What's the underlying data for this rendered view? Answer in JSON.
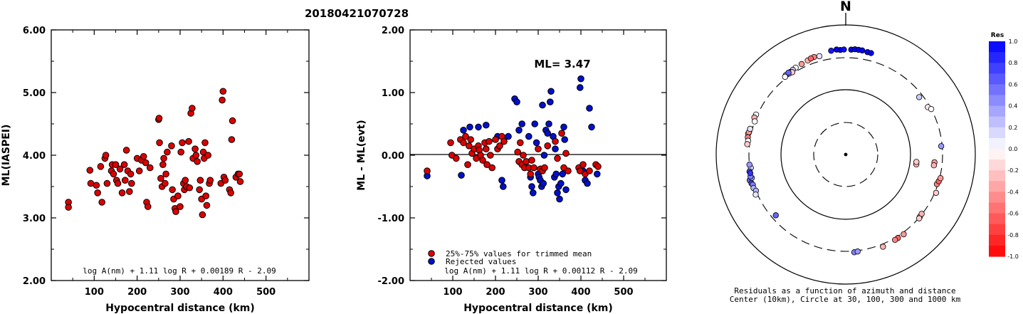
{
  "title": "20180421070728",
  "colors": {
    "point_kept": "#dd0000",
    "point_rejected": "#0010cc",
    "axis": "#000000"
  },
  "chart_data": [
    {
      "type": "scatter",
      "ylabel": "ML(IASPEI)",
      "xlabel": "Hypocentral distance (km)",
      "xlim": [
        0,
        600
      ],
      "ylim": [
        2.0,
        6.0
      ],
      "xticks": [
        "100",
        "200",
        "300",
        "400",
        "500"
      ],
      "yticks": [
        "2.00",
        "3.00",
        "4.00",
        "5.00",
        "6.00"
      ],
      "formula": "log A(nm) + 1.11 log R + 0.00189 R - 2.09",
      "points": [
        [
          40,
          3.25
        ],
        [
          40,
          3.17
        ],
        [
          90,
          3.76
        ],
        [
          92,
          3.55
        ],
        [
          105,
          3.52
        ],
        [
          108,
          3.4
        ],
        [
          115,
          3.82
        ],
        [
          118,
          3.25
        ],
        [
          125,
          3.95
        ],
        [
          127,
          4.0
        ],
        [
          130,
          3.55
        ],
        [
          140,
          3.75
        ],
        [
          142,
          3.85
        ],
        [
          145,
          3.7
        ],
        [
          150,
          3.85
        ],
        [
          152,
          3.6
        ],
        [
          155,
          3.55
        ],
        [
          160,
          3.78
        ],
        [
          165,
          3.4
        ],
        [
          170,
          3.85
        ],
        [
          172,
          3.6
        ],
        [
          175,
          4.08
        ],
        [
          178,
          3.75
        ],
        [
          182,
          3.42
        ],
        [
          185,
          3.7
        ],
        [
          187,
          3.55
        ],
        [
          200,
          3.95
        ],
        [
          205,
          3.75
        ],
        [
          210,
          3.92
        ],
        [
          215,
          3.98
        ],
        [
          220,
          3.88
        ],
        [
          222,
          3.25
        ],
        [
          225,
          3.18
        ],
        [
          230,
          3.8
        ],
        [
          250,
          4.57
        ],
        [
          251,
          4.59
        ],
        [
          252,
          4.2
        ],
        [
          255,
          3.63
        ],
        [
          258,
          3.5
        ],
        [
          260,
          3.85
        ],
        [
          262,
          3.95
        ],
        [
          265,
          3.55
        ],
        [
          267,
          3.7
        ],
        [
          270,
          4.05
        ],
        [
          280,
          4.15
        ],
        [
          282,
          3.45
        ],
        [
          285,
          3.3
        ],
        [
          288,
          3.15
        ],
        [
          290,
          3.1
        ],
        [
          295,
          3.35
        ],
        [
          300,
          3.18
        ],
        [
          302,
          4.05
        ],
        [
          305,
          4.2
        ],
        [
          308,
          3.55
        ],
        [
          310,
          3.45
        ],
        [
          312,
          3.6
        ],
        [
          315,
          3.5
        ],
        [
          320,
          4.22
        ],
        [
          322,
          3.48
        ],
        [
          325,
          4.67
        ],
        [
          328,
          4.75
        ],
        [
          330,
          3.95
        ],
        [
          335,
          4.1
        ],
        [
          337,
          4.0
        ],
        [
          340,
          3.9
        ],
        [
          345,
          3.45
        ],
        [
          347,
          3.6
        ],
        [
          350,
          3.3
        ],
        [
          352,
          3.05
        ],
        [
          354,
          4.05
        ],
        [
          356,
          3.95
        ],
        [
          358,
          4.2
        ],
        [
          360,
          3.35
        ],
        [
          362,
          3.2
        ],
        [
          365,
          4.0
        ],
        [
          368,
          3.55
        ],
        [
          370,
          3.6
        ],
        [
          395,
          3.55
        ],
        [
          398,
          4.88
        ],
        [
          400,
          5.02
        ],
        [
          402,
          3.65
        ],
        [
          405,
          3.6
        ],
        [
          415,
          3.45
        ],
        [
          418,
          3.4
        ],
        [
          420,
          4.25
        ],
        [
          422,
          4.55
        ],
        [
          430,
          3.65
        ],
        [
          435,
          3.7
        ],
        [
          438,
          3.7
        ],
        [
          440,
          3.58
        ]
      ]
    },
    {
      "type": "scatter",
      "ylabel": "ML - ML(evt)",
      "xlabel": "Hypocentral distance (km)",
      "xlim": [
        0,
        600
      ],
      "ylim": [
        -2.0,
        2.0
      ],
      "xticks": [
        "100",
        "200",
        "300",
        "400",
        "500"
      ],
      "yticks": [
        "-2.00",
        "-1.00",
        "0.00",
        "1.00",
        "2.00"
      ],
      "annotation": "ML= 3.47",
      "formula": "log A(nm) + 1.11 log R + 0.00112 R - 2.09",
      "legend": [
        {
          "label": "25%-75% values for trimmed mean",
          "color": "#dd0000"
        },
        {
          "label": "Rejected values",
          "color": "#0010cc"
        }
      ],
      "kept_points": [
        [
          40,
          -0.25
        ],
        [
          95,
          0.2
        ],
        [
          98,
          0.0
        ],
        [
          108,
          -0.05
        ],
        [
          118,
          0.25
        ],
        [
          125,
          0.2
        ],
        [
          130,
          0.3
        ],
        [
          135,
          -0.15
        ],
        [
          138,
          0.15
        ],
        [
          142,
          0.25
        ],
        [
          145,
          0.03
        ],
        [
          150,
          0.1
        ],
        [
          155,
          -0.05
        ],
        [
          160,
          0.15
        ],
        [
          162,
          0.08
        ],
        [
          165,
          0.0
        ],
        [
          170,
          -0.08
        ],
        [
          175,
          0.2
        ],
        [
          178,
          0.1
        ],
        [
          180,
          -0.15
        ],
        [
          185,
          0.22
        ],
        [
          188,
          0.0
        ],
        [
          192,
          -0.2
        ],
        [
          200,
          0.25
        ],
        [
          205,
          0.1
        ],
        [
          210,
          0.15
        ],
        [
          215,
          0.3
        ],
        [
          220,
          0.22
        ],
        [
          252,
          0.05
        ],
        [
          255,
          -0.1
        ],
        [
          258,
          0.2
        ],
        [
          262,
          -0.15
        ],
        [
          265,
          0.0
        ],
        [
          268,
          -0.2
        ],
        [
          272,
          -0.1
        ],
        [
          278,
          -0.2
        ],
        [
          282,
          -0.3
        ],
        [
          285,
          -0.08
        ],
        [
          290,
          -0.2
        ],
        [
          300,
          0.1
        ],
        [
          305,
          -0.22
        ],
        [
          310,
          -0.25
        ],
        [
          315,
          -0.2
        ],
        [
          322,
          0.15
        ],
        [
          340,
          0.22
        ],
        [
          345,
          -0.05
        ],
        [
          355,
          0.35
        ],
        [
          360,
          -0.2
        ],
        [
          365,
          0.03
        ],
        [
          370,
          -0.25
        ],
        [
          395,
          -0.2
        ],
        [
          398,
          -0.25
        ],
        [
          405,
          -0.15
        ],
        [
          410,
          -0.3
        ],
        [
          420,
          -0.25
        ],
        [
          435,
          -0.15
        ],
        [
          440,
          -0.18
        ]
      ],
      "rejected_points": [
        [
          40,
          -0.33
        ],
        [
          120,
          -0.32
        ],
        [
          125,
          0.4
        ],
        [
          140,
          0.45
        ],
        [
          160,
          0.45
        ],
        [
          178,
          0.48
        ],
        [
          205,
          0.3
        ],
        [
          215,
          -0.4
        ],
        [
          218,
          -0.5
        ],
        [
          230,
          0.3
        ],
        [
          245,
          0.9
        ],
        [
          250,
          0.85
        ],
        [
          255,
          0.4
        ],
        [
          262,
          0.5
        ],
        [
          278,
          0.3
        ],
        [
          282,
          -0.35
        ],
        [
          285,
          -0.5
        ],
        [
          288,
          -0.6
        ],
        [
          292,
          0.5
        ],
        [
          296,
          0.2
        ],
        [
          300,
          -0.3
        ],
        [
          302,
          -0.35
        ],
        [
          305,
          -0.4
        ],
        [
          308,
          -0.5
        ],
        [
          310,
          0.8
        ],
        [
          312,
          -0.45
        ],
        [
          314,
          0.0
        ],
        [
          318,
          0.4
        ],
        [
          322,
          0.35
        ],
        [
          325,
          0.5
        ],
        [
          328,
          0.85
        ],
        [
          330,
          1.02
        ],
        [
          335,
          0.3
        ],
        [
          338,
          -0.35
        ],
        [
          340,
          0.1
        ],
        [
          342,
          -0.3
        ],
        [
          345,
          -0.6
        ],
        [
          348,
          -0.5
        ],
        [
          350,
          -0.7
        ],
        [
          353,
          -0.45
        ],
        [
          357,
          -0.3
        ],
        [
          360,
          0.45
        ],
        [
          362,
          0.25
        ],
        [
          365,
          -0.55
        ],
        [
          398,
          1.08
        ],
        [
          400,
          1.22
        ],
        [
          405,
          -0.25
        ],
        [
          410,
          -0.4
        ],
        [
          415,
          -0.45
        ],
        [
          420,
          0.75
        ],
        [
          425,
          0.45
        ],
        [
          438,
          -0.3
        ]
      ]
    },
    {
      "type": "scatter",
      "subtype": "polar",
      "north_label": "N",
      "caption": [
        "Residuals as a function of azimuth and distance",
        "Center (10km), Circle at 30, 100, 300 and 1000 km"
      ],
      "colorbar_title": "Res",
      "colorbar_ticks": [
        "1.0",
        "0.8",
        "0.6",
        "0.4",
        "0.2",
        "0.0",
        "-0.2",
        "-0.4",
        "-0.6",
        "-0.8",
        "-1.0"
      ],
      "points_az_dist_res": [
        [
          -3,
          400,
          1.2
        ],
        [
          -5,
          410,
          1.0
        ],
        [
          3,
          405,
          1.1
        ],
        [
          5,
          415,
          1.2
        ],
        [
          7,
          412,
          1.0
        ],
        [
          9,
          410,
          1.1
        ],
        [
          12,
          400,
          1.05
        ],
        [
          14,
          398,
          1.0
        ],
        [
          -8,
          402,
          0.9
        ],
        [
          -1,
          405,
          0.95
        ],
        [
          -15,
          360,
          0.1
        ],
        [
          -22,
          355,
          -0.3
        ],
        [
          -26,
          345,
          -0.4
        ],
        [
          -30,
          340,
          0.0
        ],
        [
          -32,
          335,
          0.2
        ],
        [
          -34,
          330,
          0.5
        ],
        [
          -37,
          330,
          0.3
        ],
        [
          -35,
          322,
          0.1
        ],
        [
          -33,
          315,
          -0.2
        ],
        [
          -38,
          320,
          0.0
        ],
        [
          -18,
          370,
          -0.5
        ],
        [
          -20,
          365,
          -0.6
        ],
        [
          -35,
          335,
          0.6
        ],
        [
          -78,
          335,
          -0.3
        ],
        [
          -77,
          330,
          -0.4
        ],
        [
          -75,
          325,
          0.1
        ],
        [
          -80,
          330,
          -0.5
        ],
        [
          -82,
          320,
          0.0
        ],
        [
          -84,
          325,
          -0.2
        ],
        [
          -66,
          315,
          0.0
        ],
        [
          -68,
          320,
          -0.3
        ],
        [
          -70,
          300,
          0.0
        ],
        [
          -105,
          330,
          0.6
        ],
        [
          -107,
          320,
          0.7
        ],
        [
          -108,
          310,
          0.5
        ],
        [
          -104,
          300,
          0.4
        ],
        [
          -103,
          310,
          0.5
        ],
        [
          -110,
          315,
          0.3
        ],
        [
          -112,
          300,
          0.3
        ],
        [
          -98,
          290,
          0.2
        ],
        [
          -96,
          300,
          0.4
        ],
        [
          -100,
          310,
          0.7
        ],
        [
          -114,
          320,
          0.1
        ],
        [
          -101,
          305,
          0.8
        ],
        [
          -131,
          260,
          0.6
        ],
        [
          175,
          315,
          0.5
        ],
        [
          173,
          310,
          0.4
        ],
        [
          148,
          318,
          -0.6
        ],
        [
          150,
          320,
          -0.5
        ],
        [
          144,
          320,
          -0.4
        ],
        [
          158,
          330,
          -0.3
        ],
        [
          130,
          300,
          -0.5
        ],
        [
          128,
          295,
          -0.3
        ],
        [
          131,
          305,
          -0.2
        ],
        [
          108,
          290,
          -0.5
        ],
        [
          106,
          300,
          -0.6
        ],
        [
          104,
          310,
          -0.4
        ],
        [
          113,
          315,
          -0.2
        ],
        [
          95,
          230,
          -0.4
        ],
        [
          97,
          228,
          -0.3
        ],
        [
          98,
          125,
          -0.3
        ],
        [
          96,
          124,
          -0.2
        ],
        [
          85,
          290,
          0.4
        ],
        [
          52,
          265,
          0.2
        ],
        [
          60,
          280,
          -0.1
        ],
        [
          62,
          300,
          0.0
        ]
      ]
    }
  ]
}
